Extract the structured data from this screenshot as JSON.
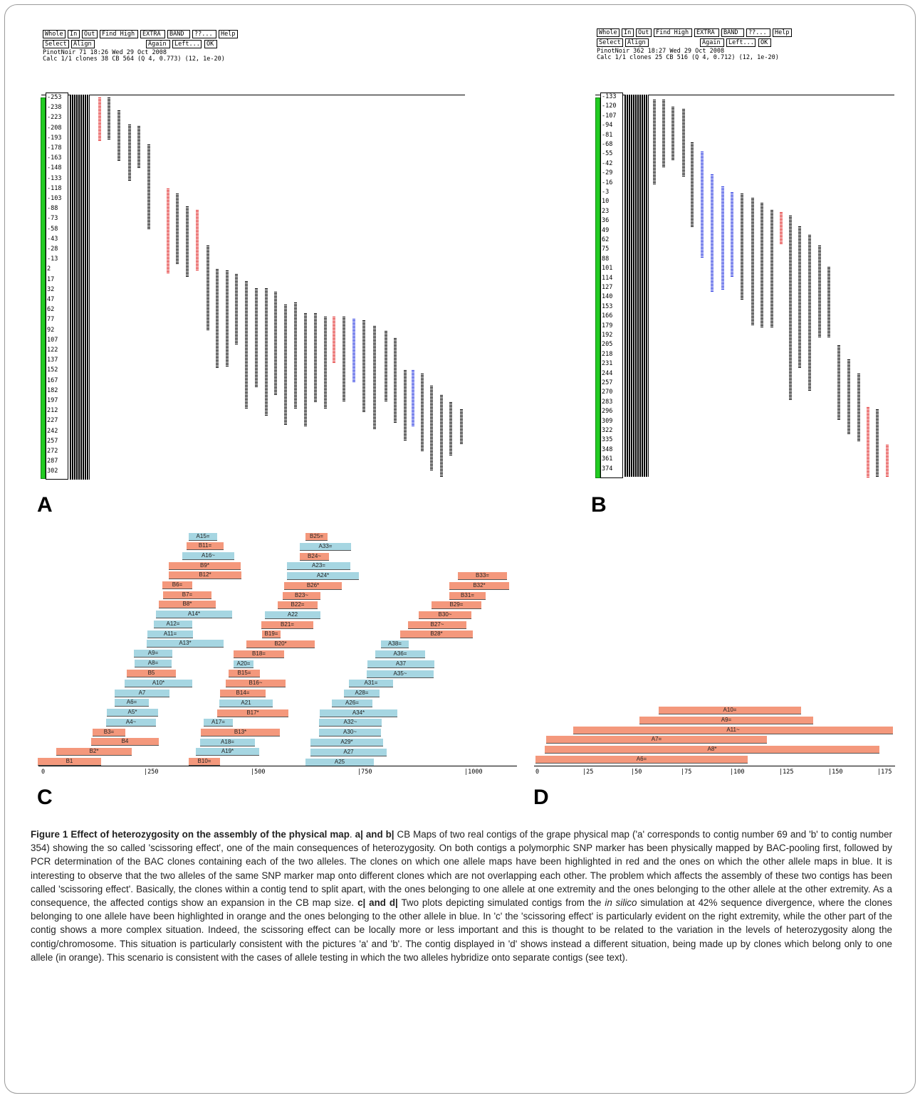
{
  "panelA": {
    "letter": "A",
    "buttons_row1": [
      "Whole",
      "In",
      "Out",
      "Find High",
      "EXTRA",
      "BAND",
      "??...",
      "Help"
    ],
    "buttons_row2": [
      "Select",
      "Align",
      "Again",
      "Left...",
      "OK"
    ],
    "info1": "PinotNoir 71 18:26 Wed 29 Oct 2008",
    "info2": "Calc 1/1 clones 38 CB 564 (Q 4, 0.773) (12, 1e-20)",
    "scale": [
      "-253",
      "-238",
      "-223",
      "-208",
      "-193",
      "-178",
      "-163",
      "-148",
      "-133",
      "-118",
      "-103",
      "-88",
      "-73",
      "-58",
      "-43",
      "-28",
      "-13",
      "2",
      "17",
      "32",
      "47",
      "62",
      "77",
      "92",
      "107",
      "122",
      "137",
      "152",
      "167",
      "182",
      "197",
      "212",
      "227",
      "242",
      "257",
      "272",
      "287",
      "302"
    ]
  },
  "panelB": {
    "letter": "B",
    "buttons_row1": [
      "Whole",
      "In",
      "Out",
      "Find High",
      "EXTRA",
      "BAND",
      "??...",
      "Help"
    ],
    "buttons_row2": [
      "Select",
      "Align",
      "Again",
      "Left...",
      "OK"
    ],
    "info1": "PinotNoir 362 18:27 Wed 29 Oct 2008",
    "info2": "Calc 1/1 clones 25 CB 516 (Q 4, 0.712) (12, 1e-20)",
    "scale": [
      "-133",
      "-120",
      "-107",
      "-94",
      "-81",
      "-68",
      "-55",
      "-42",
      "-29",
      "-16",
      "-3",
      "10",
      "23",
      "36",
      "49",
      "62",
      "75",
      "88",
      "101",
      "114",
      "127",
      "140",
      "153",
      "166",
      "179",
      "192",
      "205",
      "218",
      "231",
      "244",
      "257",
      "270",
      "283",
      "296",
      "309",
      "322",
      "335",
      "348",
      "361",
      "374"
    ]
  },
  "panelC": {
    "letter": "C",
    "axis_ticks": [
      "0",
      "|250",
      "|500",
      "|750",
      "|1000"
    ],
    "clones": [
      {
        "label": "A15=",
        "color": "b"
      },
      {
        "label": "B11=",
        "color": "o"
      },
      {
        "label": "A16~",
        "color": "b"
      },
      {
        "label": "B9*",
        "color": "o"
      },
      {
        "label": "B12*",
        "color": "o"
      },
      {
        "label": "B6=",
        "color": "o"
      },
      {
        "label": "B7=",
        "color": "o"
      },
      {
        "label": "B8*",
        "color": "o"
      },
      {
        "label": "A14*",
        "color": "b"
      },
      {
        "label": "A12=",
        "color": "b"
      },
      {
        "label": "A11=",
        "color": "b"
      },
      {
        "label": "A13*",
        "color": "b"
      },
      {
        "label": "A9=",
        "color": "b"
      },
      {
        "label": "A8=",
        "color": "b"
      },
      {
        "label": "B5",
        "color": "o"
      },
      {
        "label": "A10*",
        "color": "b"
      },
      {
        "label": "A7",
        "color": "b"
      },
      {
        "label": "A6=",
        "color": "b"
      },
      {
        "label": "A5*",
        "color": "b"
      },
      {
        "label": "A4~",
        "color": "b"
      },
      {
        "label": "B3=",
        "color": "o"
      },
      {
        "label": "B4",
        "color": "o"
      },
      {
        "label": "B2*",
        "color": "o"
      },
      {
        "label": "B1",
        "color": "o"
      },
      {
        "label": "B25=",
        "color": "o"
      },
      {
        "label": "A33=",
        "color": "b"
      },
      {
        "label": "B24~",
        "color": "o"
      },
      {
        "label": "A23=",
        "color": "b"
      },
      {
        "label": "A24*",
        "color": "b"
      },
      {
        "label": "B26*",
        "color": "o"
      },
      {
        "label": "B23~",
        "color": "o"
      },
      {
        "label": "B22=",
        "color": "o"
      },
      {
        "label": "A22",
        "color": "b"
      },
      {
        "label": "B21=",
        "color": "o"
      },
      {
        "label": "B19=",
        "color": "o"
      },
      {
        "label": "B20*",
        "color": "o"
      },
      {
        "label": "B18=",
        "color": "o"
      },
      {
        "label": "A20=",
        "color": "b"
      },
      {
        "label": "B15=",
        "color": "o"
      },
      {
        "label": "B16~",
        "color": "o"
      },
      {
        "label": "B14=",
        "color": "o"
      },
      {
        "label": "A21",
        "color": "b"
      },
      {
        "label": "B17*",
        "color": "o"
      },
      {
        "label": "A17=",
        "color": "b"
      },
      {
        "label": "B13*",
        "color": "o"
      },
      {
        "label": "A18=",
        "color": "b"
      },
      {
        "label": "A19*",
        "color": "b"
      },
      {
        "label": "B10=",
        "color": "o"
      },
      {
        "label": "B33=",
        "color": "o"
      },
      {
        "label": "B32*",
        "color": "o"
      },
      {
        "label": "B31=",
        "color": "o"
      },
      {
        "label": "B29=",
        "color": "o"
      },
      {
        "label": "B30~",
        "color": "o"
      },
      {
        "label": "B27~",
        "color": "o"
      },
      {
        "label": "B28*",
        "color": "o"
      },
      {
        "label": "A38=",
        "color": "b"
      },
      {
        "label": "A36=",
        "color": "b"
      },
      {
        "label": "A37",
        "color": "b"
      },
      {
        "label": "A35~",
        "color": "b"
      },
      {
        "label": "A31=",
        "color": "b"
      },
      {
        "label": "A28=",
        "color": "b"
      },
      {
        "label": "A26=",
        "color": "b"
      },
      {
        "label": "A34*",
        "color": "b"
      },
      {
        "label": "A32~",
        "color": "b"
      },
      {
        "label": "A30~",
        "color": "b"
      },
      {
        "label": "A29*",
        "color": "b"
      },
      {
        "label": "A27",
        "color": "b"
      },
      {
        "label": "A25",
        "color": "b"
      }
    ]
  },
  "panelD": {
    "letter": "D",
    "axis_ticks": [
      "0",
      "|25",
      "|50",
      "|75",
      "|100",
      "|125",
      "|150",
      "|175"
    ],
    "clones": [
      {
        "label": "A10=",
        "color": "o"
      },
      {
        "label": "A9=",
        "color": "o"
      },
      {
        "label": "A11~",
        "color": "o"
      },
      {
        "label": "A7=",
        "color": "o"
      },
      {
        "label": "A8*",
        "color": "o"
      },
      {
        "label": "A6=",
        "color": "o"
      }
    ]
  },
  "caption": {
    "title": "Figure 1 Effect of heterozygosity on the assembly of the physical map",
    "ab_label": "a| and b|",
    "ab_text": "CB Maps of two real contigs of the grape physical map ('a' corresponds to contig number 69 and 'b' to contig number 354) showing the so called 'scissoring effect', one of the main consequences of heterozygosity. On both contigs a polymorphic SNP marker has been physically mapped by BAC-pooling first, followed by PCR determination of the BAC clones containing each of the two alleles. The clones on which one allele maps have been highlighted in red and the ones on which the other allele maps in blue. It is interesting to observe that the two alleles of the same SNP marker map onto different clones which are not overlapping each other. The problem which affects the assembly of these two contigs has been called 'scissoring effect'. Basically, the clones within a contig tend to split apart, with the ones belonging to one allele at one extremity and the ones belonging to the other allele at the other extremity. As a consequence, the affected contigs show an expansion in the CB map size.",
    "cd_label": "c| and d|",
    "cd_text_1": "Two plots depicting simulated contigs from the",
    "cd_italic": "in silico",
    "cd_text_2": "simulation at 42% sequence divergence, where the clones belonging to one allele have been highlighted in orange and the ones belonging to the other allele in blue. In 'c' the 'scissoring effect' is particularly evident on the right extremity, while the other part of the contig shows a more complex situation. Indeed, the scissoring effect can be locally more or less important and this is thought to be related to the variation in the levels of heterozygosity along the contig/chromosome. This situation is particularly consistent with the pictures 'a' and 'b'. The contig displayed in 'd' shows instead a different situation, being made up by clones which belong only to one allele (in orange). This scenario is consistent with the cases of allele testing in which the two alleles hybridize onto separate contigs (see text)."
  }
}
